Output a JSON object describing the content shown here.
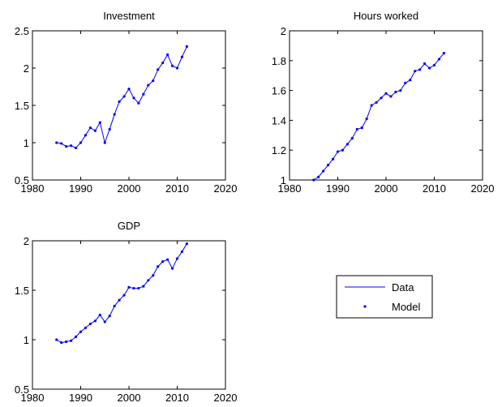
{
  "chart_data": [
    {
      "type": "line",
      "title": "Investment",
      "x": [
        1985,
        1986,
        1987,
        1988,
        1989,
        1990,
        1991,
        1992,
        1993,
        1994,
        1995,
        1996,
        1997,
        1998,
        1999,
        2000,
        2001,
        2002,
        2003,
        2004,
        2005,
        2006,
        2007,
        2008,
        2009,
        2010,
        2011,
        2012
      ],
      "series": [
        {
          "name": "Data",
          "color": "#0000ff",
          "style": "line",
          "values": [
            1.0,
            0.99,
            0.95,
            0.96,
            0.93,
            1.0,
            1.1,
            1.2,
            1.16,
            1.27,
            1.0,
            1.18,
            1.38,
            1.55,
            1.62,
            1.72,
            1.6,
            1.53,
            1.65,
            1.77,
            1.83,
            1.98,
            2.07,
            2.18,
            2.03,
            2.0,
            2.15,
            2.29
          ]
        },
        {
          "name": "Model",
          "color": "#0000ff",
          "style": "markers",
          "values": [
            1.0,
            0.99,
            0.95,
            0.96,
            0.93,
            1.0,
            1.1,
            1.2,
            1.16,
            1.27,
            1.0,
            1.18,
            1.38,
            1.55,
            1.62,
            1.72,
            1.6,
            1.53,
            1.65,
            1.77,
            1.83,
            1.98,
            2.07,
            2.18,
            2.03,
            2.0,
            2.15,
            2.29
          ]
        }
      ],
      "xlim": [
        1980,
        2020
      ],
      "xticks": [
        1980,
        1990,
        2000,
        2010,
        2020
      ],
      "ylim": [
        0.5,
        2.5
      ],
      "yticks": [
        0.5,
        1,
        1.5,
        2,
        2.5
      ]
    },
    {
      "type": "line",
      "title": "Hours worked",
      "x": [
        1985,
        1986,
        1987,
        1988,
        1989,
        1990,
        1991,
        1992,
        1993,
        1994,
        1995,
        1996,
        1997,
        1998,
        1999,
        2000,
        2001,
        2002,
        2003,
        2004,
        2005,
        2006,
        2007,
        2008,
        2009,
        2010,
        2011,
        2012
      ],
      "series": [
        {
          "name": "Data",
          "color": "#0000ff",
          "style": "line",
          "values": [
            1.0,
            1.02,
            1.06,
            1.1,
            1.14,
            1.19,
            1.2,
            1.24,
            1.28,
            1.34,
            1.35,
            1.41,
            1.5,
            1.52,
            1.55,
            1.58,
            1.56,
            1.59,
            1.6,
            1.65,
            1.67,
            1.73,
            1.74,
            1.78,
            1.75,
            1.77,
            1.81,
            1.85
          ]
        },
        {
          "name": "Model",
          "color": "#0000ff",
          "style": "markers",
          "values": [
            1.0,
            1.02,
            1.06,
            1.1,
            1.14,
            1.19,
            1.2,
            1.24,
            1.28,
            1.34,
            1.35,
            1.41,
            1.5,
            1.52,
            1.55,
            1.58,
            1.56,
            1.59,
            1.6,
            1.65,
            1.67,
            1.73,
            1.74,
            1.78,
            1.75,
            1.77,
            1.81,
            1.85
          ]
        }
      ],
      "xlim": [
        1980,
        2020
      ],
      "xticks": [
        1980,
        1990,
        2000,
        2010,
        2020
      ],
      "ylim": [
        1,
        2
      ],
      "yticks": [
        1,
        1.2,
        1.4,
        1.6,
        1.8,
        2
      ]
    },
    {
      "type": "line",
      "title": "GDP",
      "x": [
        1985,
        1986,
        1987,
        1988,
        1989,
        1990,
        1991,
        1992,
        1993,
        1994,
        1995,
        1996,
        1997,
        1998,
        1999,
        2000,
        2001,
        2002,
        2003,
        2004,
        2005,
        2006,
        2007,
        2008,
        2009,
        2010,
        2011,
        2012
      ],
      "series": [
        {
          "name": "Data",
          "color": "#0000ff",
          "style": "line",
          "values": [
            1.0,
            0.97,
            0.98,
            0.99,
            1.03,
            1.08,
            1.12,
            1.16,
            1.19,
            1.25,
            1.18,
            1.24,
            1.34,
            1.4,
            1.45,
            1.53,
            1.52,
            1.52,
            1.54,
            1.6,
            1.65,
            1.74,
            1.79,
            1.81,
            1.72,
            1.82,
            1.89,
            1.97
          ]
        },
        {
          "name": "Model",
          "color": "#0000ff",
          "style": "markers",
          "values": [
            1.0,
            0.97,
            0.98,
            0.99,
            1.03,
            1.08,
            1.12,
            1.16,
            1.19,
            1.25,
            1.18,
            1.24,
            1.34,
            1.4,
            1.45,
            1.53,
            1.52,
            1.52,
            1.54,
            1.6,
            1.65,
            1.74,
            1.79,
            1.81,
            1.72,
            1.82,
            1.89,
            1.97
          ]
        }
      ],
      "xlim": [
        1980,
        2020
      ],
      "xticks": [
        1980,
        1990,
        2000,
        2010,
        2020
      ],
      "ylim": [
        0.5,
        2
      ],
      "yticks": [
        0.5,
        1,
        1.5,
        2
      ],
      "legend": "outside"
    }
  ]
}
